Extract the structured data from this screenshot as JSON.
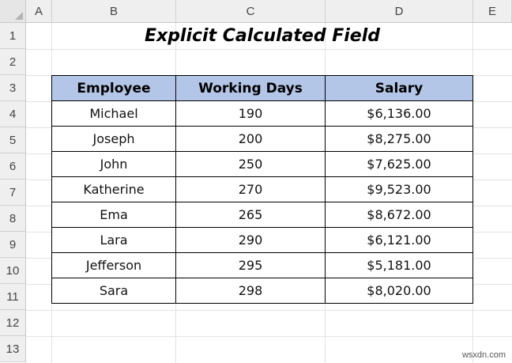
{
  "sheet": {
    "columns": [
      "A",
      "B",
      "C",
      "D",
      "E"
    ],
    "rows": [
      "1",
      "2",
      "3",
      "4",
      "5",
      "6",
      "7",
      "8",
      "9",
      "10",
      "11",
      "12",
      "13"
    ]
  },
  "title": "Explicit Calculated Field",
  "table": {
    "headers": [
      "Employee",
      "Working Days",
      "Salary"
    ],
    "rows": [
      [
        "Michael",
        "190",
        "$6,136.00"
      ],
      [
        "Joseph",
        "200",
        "$8,275.00"
      ],
      [
        "John",
        "250",
        "$7,625.00"
      ],
      [
        "Katherine",
        "270",
        "$9,523.00"
      ],
      [
        "Ema",
        "265",
        "$8,672.00"
      ],
      [
        "Lara",
        "290",
        "$6,121.00"
      ],
      [
        "Jefferson",
        "295",
        "$5,181.00"
      ],
      [
        "Sara",
        "298",
        "$8,020.00"
      ]
    ]
  },
  "watermark": "wsxdn.com",
  "colors": {
    "header_fill": "#b4c6e7",
    "gridline": "#e2e2e2",
    "header_bg": "#efefef"
  }
}
